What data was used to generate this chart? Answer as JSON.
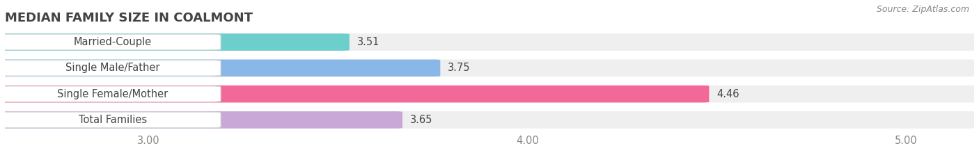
{
  "title": "MEDIAN FAMILY SIZE IN COALMONT",
  "source": "Source: ZipAtlas.com",
  "categories": [
    "Married-Couple",
    "Single Male/Father",
    "Single Female/Mother",
    "Total Families"
  ],
  "values": [
    3.51,
    3.75,
    4.46,
    3.65
  ],
  "colors": [
    "#6dcfcb",
    "#89b8e8",
    "#f26899",
    "#c9a8d8"
  ],
  "bar_bg_color": "#efefef",
  "xlim": [
    2.62,
    5.18
  ],
  "xmin": 2.62,
  "xticks": [
    3.0,
    4.0,
    5.0
  ],
  "xtick_labels": [
    "3.00",
    "4.00",
    "5.00"
  ],
  "background_color": "#ffffff",
  "bar_height": 0.62,
  "label_fontsize": 10.5,
  "value_fontsize": 10.5,
  "title_fontsize": 13,
  "source_fontsize": 9
}
